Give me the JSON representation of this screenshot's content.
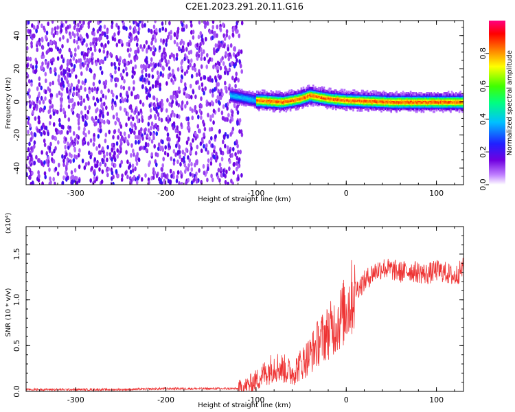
{
  "title": "C2E1.2023.291.20.11.G16",
  "chart_data": [
    {
      "type": "heatmap",
      "title": "C2E1.2023.291.20.11.G16",
      "xlabel": "Height of straight line (km)",
      "ylabel": "Frequency (Hz)",
      "xlim": [
        -355,
        130
      ],
      "ylim": [
        -50,
        49
      ],
      "x_ticks": [
        -300,
        -200,
        -100,
        0,
        100
      ],
      "x_tick_labels": [
        "-300",
        "-200",
        "-100",
        "0",
        "100"
      ],
      "y_ticks": [
        -40,
        -20,
        0,
        20,
        40
      ],
      "y_tick_labels": [
        "-40",
        "-20",
        "0",
        "20",
        "40"
      ],
      "colorbar": {
        "label": "Normalized spectral amplitude",
        "range": [
          0,
          1
        ],
        "ticks": [
          0.0,
          0.2,
          0.4,
          0.6,
          0.8
        ],
        "tick_labels": [
          "0.0",
          "0.2",
          "0.4",
          "0.6",
          "0.8"
        ],
        "colors": [
          "#ffffff",
          "#c080ff",
          "#7000e0",
          "#2020ff",
          "#00c0ff",
          "#00ff80",
          "#40ff00",
          "#ffff00",
          "#ff8000",
          "#ff0000",
          "#ff0080"
        ]
      },
      "regions": [
        {
          "x_range": [
            -355,
            -115
          ],
          "freq_range": [
            -50,
            49
          ],
          "amplitude_range": [
            0.0,
            0.2
          ],
          "description_color": "#6a00e0"
        },
        {
          "x_range": [
            -128,
            130
          ],
          "freq_center_points": [
            [
              -128,
              4
            ],
            [
              -100,
              1
            ],
            [
              -70,
              0
            ],
            [
              -50,
              2
            ],
            [
              -40,
              4
            ],
            [
              -20,
              2
            ],
            [
              0,
              1
            ],
            [
              50,
              0
            ],
            [
              100,
              0
            ],
            [
              130,
              0
            ]
          ],
          "band_halfwidth_hz": 4,
          "peak_amplitude": 0.85
        }
      ]
    },
    {
      "type": "line",
      "xlabel": "Height of straight line (km)",
      "ylabel": "SNR (10 * v/v)",
      "y_multiplier_label": "(x10⁴)",
      "xlim": [
        -355,
        130
      ],
      "ylim": [
        0,
        1.8
      ],
      "x_ticks": [
        -300,
        -200,
        -100,
        0,
        100
      ],
      "x_tick_labels": [
        "-300",
        "-200",
        "-100",
        "0",
        "100"
      ],
      "y_ticks": [
        0.0,
        0.5,
        1.0,
        1.5
      ],
      "y_tick_labels": [
        "0.0",
        "0.5",
        "1.0",
        "1.5"
      ],
      "series": [
        {
          "color": "#ee3333",
          "x": [
            -355,
            -300,
            -250,
            -200,
            -150,
            -120,
            -110,
            -100,
            -90,
            -80,
            -70,
            -60,
            -50,
            -40,
            -30,
            -20,
            -10,
            0,
            10,
            20,
            30,
            40,
            50,
            60,
            70,
            80,
            90,
            100,
            110,
            120,
            130
          ],
          "y": [
            0.02,
            0.02,
            0.02,
            0.03,
            0.03,
            0.03,
            0.06,
            0.12,
            0.2,
            0.28,
            0.25,
            0.2,
            0.3,
            0.4,
            0.55,
            0.65,
            0.75,
            0.9,
            1.1,
            1.2,
            1.3,
            1.35,
            1.33,
            1.3,
            1.32,
            1.3,
            1.28,
            1.32,
            1.3,
            1.25,
            1.35
          ]
        }
      ]
    }
  ]
}
